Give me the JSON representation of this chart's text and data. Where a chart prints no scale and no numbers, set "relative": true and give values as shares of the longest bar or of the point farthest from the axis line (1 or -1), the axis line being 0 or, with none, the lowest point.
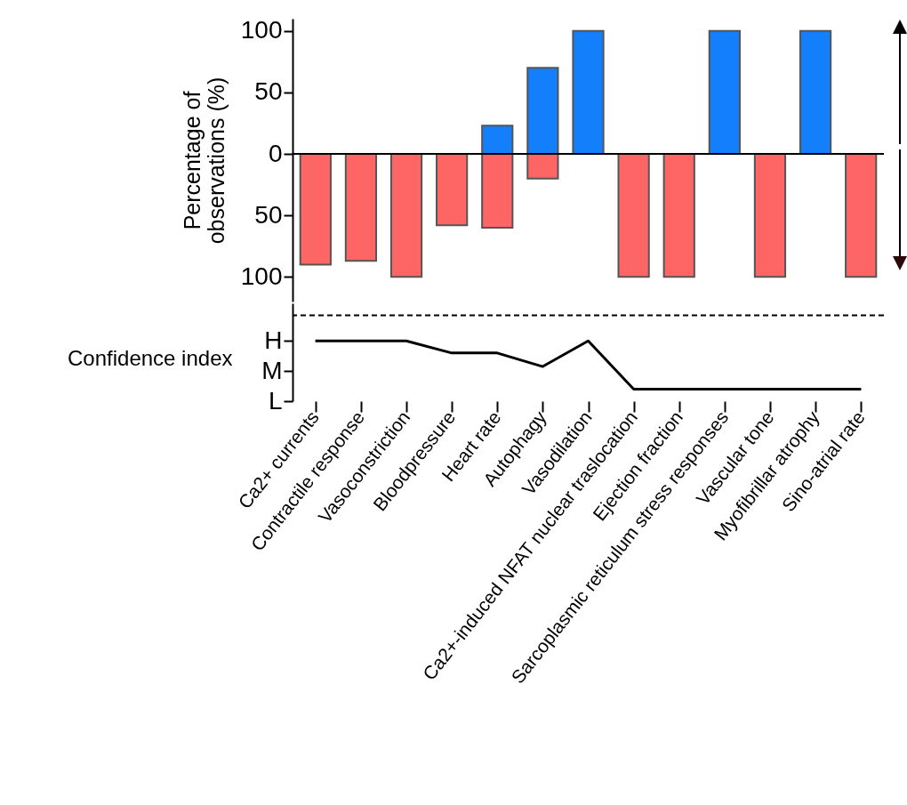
{
  "chart_data": [
    {
      "type": "bar",
      "ylabel": "Percentage of\nobservations (%)",
      "categories": [
        null,
        null,
        null,
        null,
        null,
        null,
        null,
        null,
        null,
        null,
        null,
        null,
        null
      ],
      "series": [
        {
          "color": "#137ffb",
          "values": [
            null,
            null,
            null,
            null,
            23,
            70,
            100,
            null,
            null,
            100,
            null,
            100,
            null
          ]
        },
        {
          "color": "#fe6565",
          "values": [
            -90,
            -87,
            -100,
            -58,
            -60,
            -20,
            null,
            -100,
            -100,
            null,
            -100,
            null,
            -100
          ]
        }
      ],
      "ylim": [
        -120,
        110
      ],
      "yticks": [
        {
          "value": -100,
          "label": "100"
        },
        {
          "value": -50,
          "label": "50"
        },
        0,
        50,
        100
      ],
      "ref_lines": [
        {
          "axis": "y",
          "value": 0
        }
      ],
      "tick_labels": "y",
      "grid": false,
      "legend": false
    },
    {
      "type": "line",
      "ylabel": "Confidence index",
      "categories": [
        "Ca2+ currents",
        "Contractile response",
        "Vasoconstriction",
        "Bloodpressure",
        "Heart rate",
        "Autophagy",
        "Vasodilation",
        "Ca2+-induced NFAT nuclear traslocation",
        "Ejection fraction",
        "Sarcoplasmic reticulum stress responses",
        "Vascular tone",
        "Myofibrillar atrophy",
        "Sino-atrial rate"
      ],
      "series": [
        {
          "color": "#000000",
          "values": [
            1,
            1,
            1,
            0.8,
            0.8,
            0.575,
            1,
            0.2,
            0.2,
            0.2,
            0.2,
            0.2,
            0.2
          ]
        }
      ],
      "relative": true,
      "annotations": [
        "H",
        "M",
        "L"
      ],
      "ref_lines": [
        {
          "axis": "y",
          "value": 1.425,
          "line_style": "dashed"
        }
      ],
      "grid": false,
      "marker": "none",
      "line_style": "solid"
    }
  ]
}
